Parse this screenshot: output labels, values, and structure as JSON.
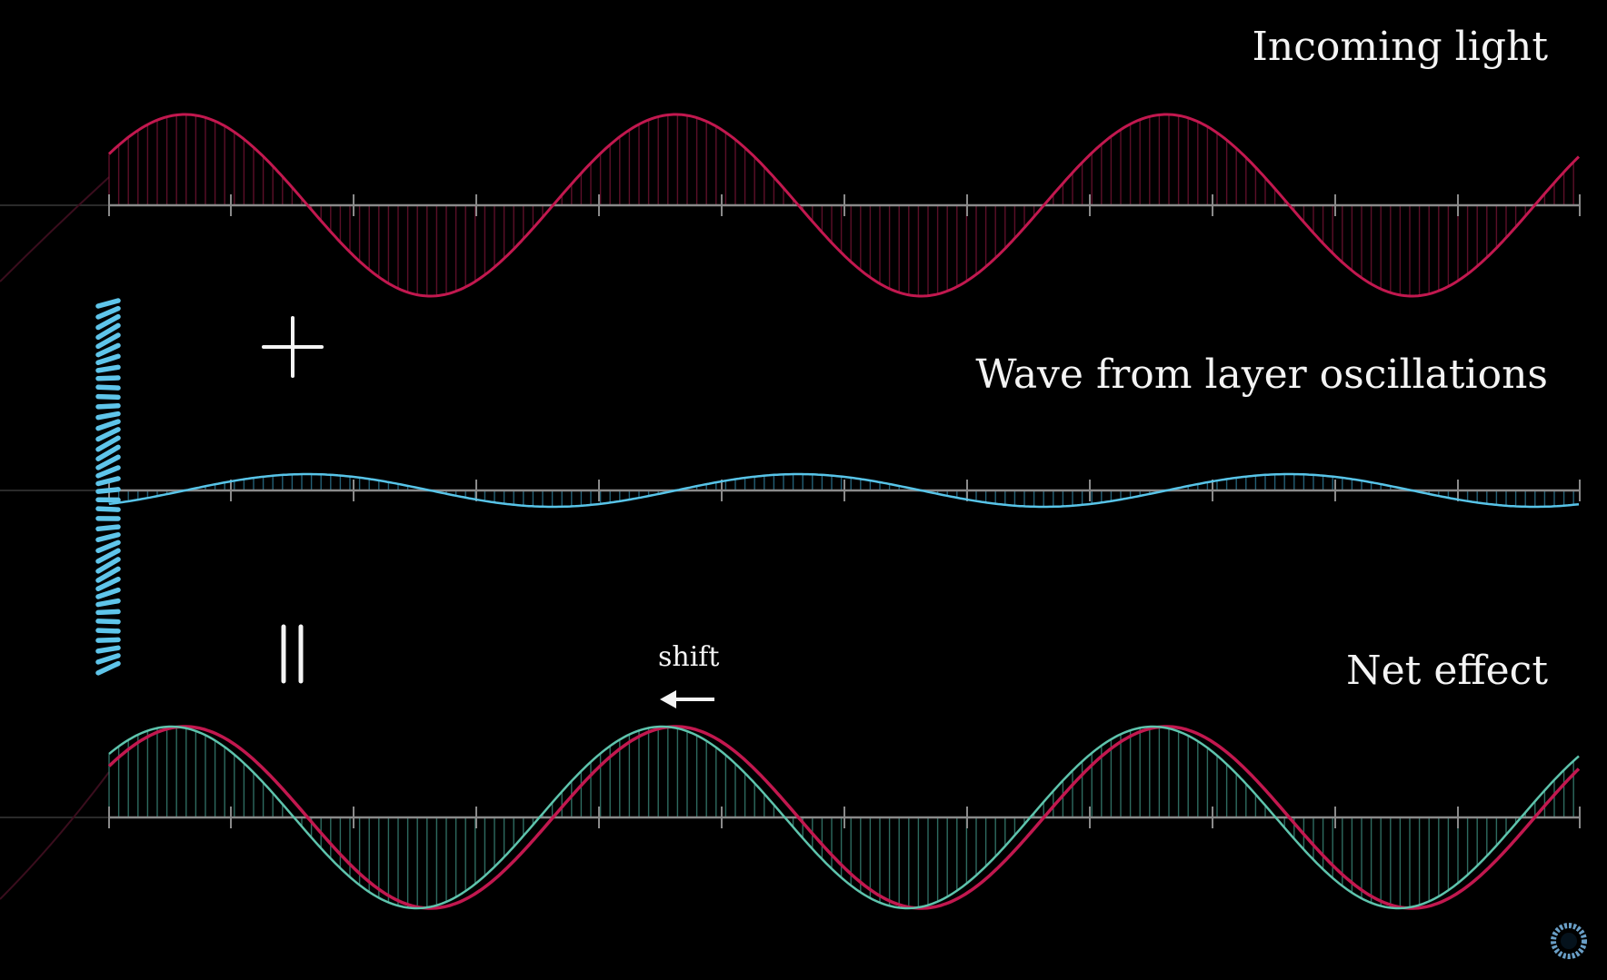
{
  "labels": {
    "incoming": "Incoming light",
    "layer": "Wave from layer oscillations",
    "net": "Net effect",
    "shift": "shift",
    "plus": "+",
    "equals": "="
  },
  "colors": {
    "background": "#000000",
    "incoming_wave": "#c2184f",
    "layer_wave": "#58c4e8",
    "net_wave": "#5ec4ad",
    "axis": "#8a8a8a",
    "text": "#f4f4f4",
    "layer_dash": "#5fc5ea"
  },
  "waves": {
    "incoming": {
      "amplitude": 1.0,
      "cycles": 3,
      "phase_deg": 0
    },
    "layer": {
      "amplitude": 0.18,
      "cycles": 3,
      "phase_deg": -90
    },
    "net": {
      "amplitude": 1.0,
      "cycles": 3,
      "phase_deg": 10
    }
  },
  "icons": {
    "plus": "plus-sign",
    "equals": "equals-sign",
    "shift_arrow": "left-arrow-icon",
    "layer": "oscillating-layer-column",
    "corner": "spinner-icon"
  }
}
